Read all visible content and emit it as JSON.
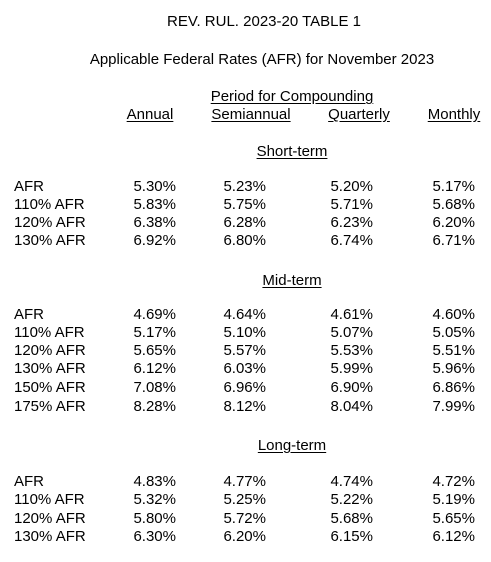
{
  "title": "REV. RUL. 2023-20 TABLE 1",
  "subtitle": "Applicable Federal Rates (AFR) for November 2023",
  "period_heading": "Period for Compounding",
  "columns": [
    "Annual",
    "Semiannual",
    "Quarterly",
    "Monthly"
  ],
  "sections": [
    {
      "heading": "Short-term",
      "rows": [
        {
          "label": "AFR",
          "values": [
            "5.30%",
            "5.23%",
            "5.20%",
            "5.17%"
          ]
        },
        {
          "label": "110% AFR",
          "values": [
            "5.83%",
            "5.75%",
            "5.71%",
            "5.68%"
          ]
        },
        {
          "label": "120% AFR",
          "values": [
            "6.38%",
            "6.28%",
            "6.23%",
            "6.20%"
          ]
        },
        {
          "label": "130% AFR",
          "values": [
            "6.92%",
            "6.80%",
            "6.74%",
            "6.71%"
          ]
        }
      ]
    },
    {
      "heading": "Mid-term",
      "rows": [
        {
          "label": "AFR",
          "values": [
            "4.69%",
            "4.64%",
            "4.61%",
            "4.60%"
          ]
        },
        {
          "label": "110% AFR",
          "values": [
            "5.17%",
            "5.10%",
            "5.07%",
            "5.05%"
          ]
        },
        {
          "label": "120% AFR",
          "values": [
            "5.65%",
            "5.57%",
            "5.53%",
            "5.51%"
          ]
        },
        {
          "label": "130% AFR",
          "values": [
            "6.12%",
            "6.03%",
            "5.99%",
            "5.96%"
          ]
        },
        {
          "label": "150% AFR",
          "values": [
            "7.08%",
            "6.96%",
            "6.90%",
            "6.86%"
          ]
        },
        {
          "label": "175% AFR",
          "values": [
            "8.28%",
            "8.12%",
            "8.04%",
            "7.99%"
          ]
        }
      ]
    },
    {
      "heading": "Long-term",
      "rows": [
        {
          "label": "AFR",
          "values": [
            "4.83%",
            "4.77%",
            "4.74%",
            "4.72%"
          ]
        },
        {
          "label": "110% AFR",
          "values": [
            "5.32%",
            "5.25%",
            "5.22%",
            "5.19%"
          ]
        },
        {
          "label": "120% AFR",
          "values": [
            "5.80%",
            "5.72%",
            "5.68%",
            "5.65%"
          ]
        },
        {
          "label": "130% AFR",
          "values": [
            "6.30%",
            "6.20%",
            "6.15%",
            "6.12%"
          ]
        }
      ]
    }
  ]
}
